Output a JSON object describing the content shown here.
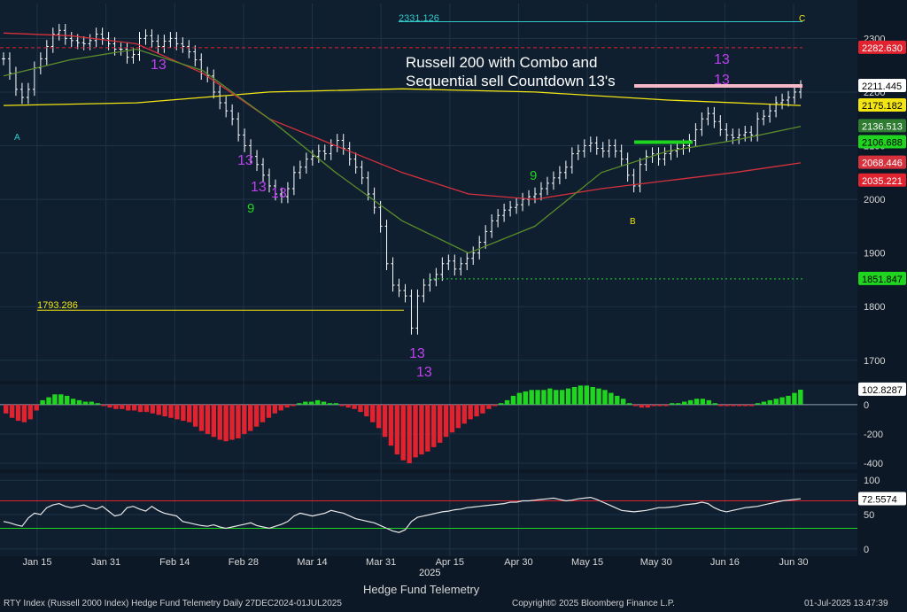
{
  "chart_data": [
    {
      "type": "candlestick-line",
      "title": "Russell 200 with Combo and Sequential sell Countdown 13's",
      "xlabel": "",
      "x_ticks": [
        "Jan 15",
        "Jan 31",
        "Feb 14",
        "Feb 28",
        "Mar 14",
        "Mar 31",
        "Apr 15",
        "Apr 30",
        "May 15",
        "May 30",
        "Jun 16",
        "Jun 30"
      ],
      "year_label": "2025",
      "y_ticks": [
        1700,
        1800,
        1900,
        2000,
        2100,
        2200,
        2300
      ],
      "ylim": [
        1665,
        2365
      ],
      "price_labels": [
        {
          "value": "2282.630",
          "color": "#e0232f",
          "text_color": "#ffffff"
        },
        {
          "value": "2211.445",
          "color": "#ffffff",
          "text_color": "#000000"
        },
        {
          "value": "2175.182",
          "color": "#f2e512",
          "text_color": "#000000"
        },
        {
          "value": "2136.513",
          "color": "#2e7d32",
          "text_color": "#ffffff"
        },
        {
          "value": "2106.688",
          "color": "#1fd51f",
          "text_color": "#000000"
        },
        {
          "value": "2068.446",
          "color": "#d6313c",
          "text_color": "#ffffff"
        },
        {
          "value": "2035.221",
          "color": "#e0232f",
          "text_color": "#ffffff"
        },
        {
          "value": "1851.847",
          "color": "#1fd51f",
          "text_color": "#000000"
        }
      ],
      "annotations": [
        "2331.126",
        "1793.286",
        "13",
        "13",
        "13",
        "13",
        "13",
        "13",
        "13",
        "13",
        "9",
        "9",
        "A",
        "B",
        "C"
      ],
      "series": [
        {
          "name": "Price",
          "color": "#ffffff",
          "values": [
            2262,
            2235,
            2205,
            2190,
            2205,
            2245,
            2262,
            2285,
            2308,
            2315,
            2300,
            2296,
            2292,
            2290,
            2296,
            2308,
            2300,
            2290,
            2280,
            2280,
            2265,
            2270,
            2300,
            2305,
            2295,
            2285,
            2295,
            2300,
            2290,
            2285,
            2275,
            2260,
            2235,
            2230,
            2200,
            2180,
            2165,
            2150,
            2120,
            2100,
            2080,
            2065,
            2045,
            2025,
            2010,
            2005,
            2020,
            2050,
            2060,
            2075,
            2080,
            2090,
            2085,
            2100,
            2110,
            2095,
            2075,
            2060,
            2040,
            2010,
            1985,
            1950,
            1880,
            1840,
            1830,
            1820,
            1760,
            1820,
            1840,
            1850,
            1860,
            1880,
            1885,
            1870,
            1880,
            1890,
            1900,
            1920,
            1940,
            1960,
            1970,
            1980,
            1985,
            1990,
            2000,
            2005,
            2010,
            2020,
            2030,
            2040,
            2050,
            2060,
            2085,
            2090,
            2100,
            2105,
            2095,
            2090,
            2100,
            2090,
            2075,
            2045,
            2025,
            2065,
            2080,
            2085,
            2075,
            2085,
            2090,
            2095,
            2100,
            2110,
            2130,
            2150,
            2160,
            2145,
            2130,
            2120,
            2115,
            2120,
            2125,
            2120,
            2150,
            2155,
            2165,
            2180,
            2185,
            2190,
            2200,
            2210
          ]
        },
        {
          "name": "",
          "color": "#f2e512",
          "values": [
            2175,
            2180,
            2200,
            2206,
            2200,
            2185,
            2175
          ]
        },
        {
          "name": "",
          "color": "#d6313c",
          "values": [
            2310,
            2305,
            2290,
            2235,
            2150,
            2100,
            2050,
            2010,
            2000,
            2020,
            2035,
            2050,
            2068
          ]
        },
        {
          "name": "",
          "color": "#5b8c2a",
          "values": [
            2230,
            2260,
            2280,
            2240,
            2150,
            2050,
            1960,
            1900,
            1950,
            2050,
            2090,
            2110,
            2136
          ]
        }
      ]
    },
    {
      "type": "bar",
      "y_ticks": [
        0,
        -200,
        -400
      ],
      "ylim": [
        -430,
        120
      ],
      "last_value": "102.8287",
      "values": [
        -60,
        -90,
        -110,
        -120,
        -100,
        -40,
        30,
        50,
        70,
        70,
        60,
        40,
        30,
        20,
        20,
        10,
        -10,
        -20,
        -30,
        -30,
        -40,
        -40,
        -50,
        -50,
        -60,
        -70,
        -80,
        -90,
        -100,
        -110,
        -120,
        -150,
        -180,
        -200,
        -220,
        -240,
        -250,
        -240,
        -230,
        -200,
        -180,
        -150,
        -120,
        -90,
        -60,
        -40,
        -20,
        -10,
        10,
        20,
        20,
        30,
        20,
        10,
        10,
        -10,
        -20,
        -30,
        -50,
        -80,
        -120,
        -160,
        -220,
        -280,
        -340,
        -380,
        -400,
        -360,
        -340,
        -320,
        -290,
        -260,
        -220,
        -190,
        -160,
        -130,
        -100,
        -80,
        -60,
        -30,
        -10,
        10,
        30,
        60,
        80,
        90,
        100,
        100,
        100,
        110,
        100,
        100,
        110,
        120,
        130,
        130,
        120,
        110,
        100,
        80,
        60,
        40,
        10,
        -10,
        -20,
        -20,
        -10,
        -10,
        -10,
        10,
        10,
        20,
        30,
        40,
        40,
        30,
        10,
        -10,
        -10,
        -10,
        -10,
        -10,
        -10,
        10,
        20,
        30,
        40,
        50,
        60,
        80,
        102
      ]
    },
    {
      "type": "line",
      "y_ticks": [
        0,
        50,
        100
      ],
      "ylim": [
        -8,
        108
      ],
      "last_value": "72.5574",
      "values": [
        40,
        38,
        35,
        33,
        45,
        52,
        50,
        60,
        64,
        66,
        62,
        60,
        62,
        64,
        60,
        58,
        62,
        55,
        48,
        50,
        60,
        62,
        58,
        55,
        62,
        56,
        52,
        50,
        48,
        40,
        38,
        36,
        34,
        33,
        35,
        32,
        30,
        32,
        34,
        36,
        38,
        34,
        32,
        30,
        33,
        36,
        40,
        48,
        52,
        50,
        48,
        50,
        52,
        56,
        54,
        52,
        48,
        44,
        42,
        40,
        38,
        34,
        30,
        26,
        24,
        28,
        40,
        46,
        48,
        50,
        52,
        54,
        55,
        57,
        58,
        60,
        61,
        62,
        63,
        64,
        65,
        66,
        68,
        68,
        70,
        70,
        71,
        72,
        73,
        74,
        72,
        70,
        71,
        73,
        74,
        75,
        72,
        68,
        64,
        60,
        56,
        55,
        54,
        55,
        56,
        58,
        60,
        60,
        61,
        62,
        64,
        65,
        66,
        68,
        66,
        60,
        56,
        54,
        56,
        58,
        60,
        61,
        62,
        64,
        66,
        68,
        70,
        71,
        72,
        73
      ]
    }
  ],
  "footer": {
    "left": "RTY Index (Russell 2000 Index) Hedge Fund Telemetry  Daily 27DEC2024-01JUL2025",
    "center": "Copyright© 2025 Bloomberg Finance L.P.",
    "right": "01-Jul-2025 13:47:39",
    "subtitle": "Hedge Fund Telemetry"
  },
  "colors": {
    "background": "#0c1826",
    "panel_bg": "#112233",
    "grid": "#1e3347",
    "up": "#1fd51f",
    "down": "#e0232f",
    "magenta": "#c040f0",
    "yellow": "#f2e512",
    "cyan": "#33c8c8",
    "pink": "#f5b8c8"
  }
}
